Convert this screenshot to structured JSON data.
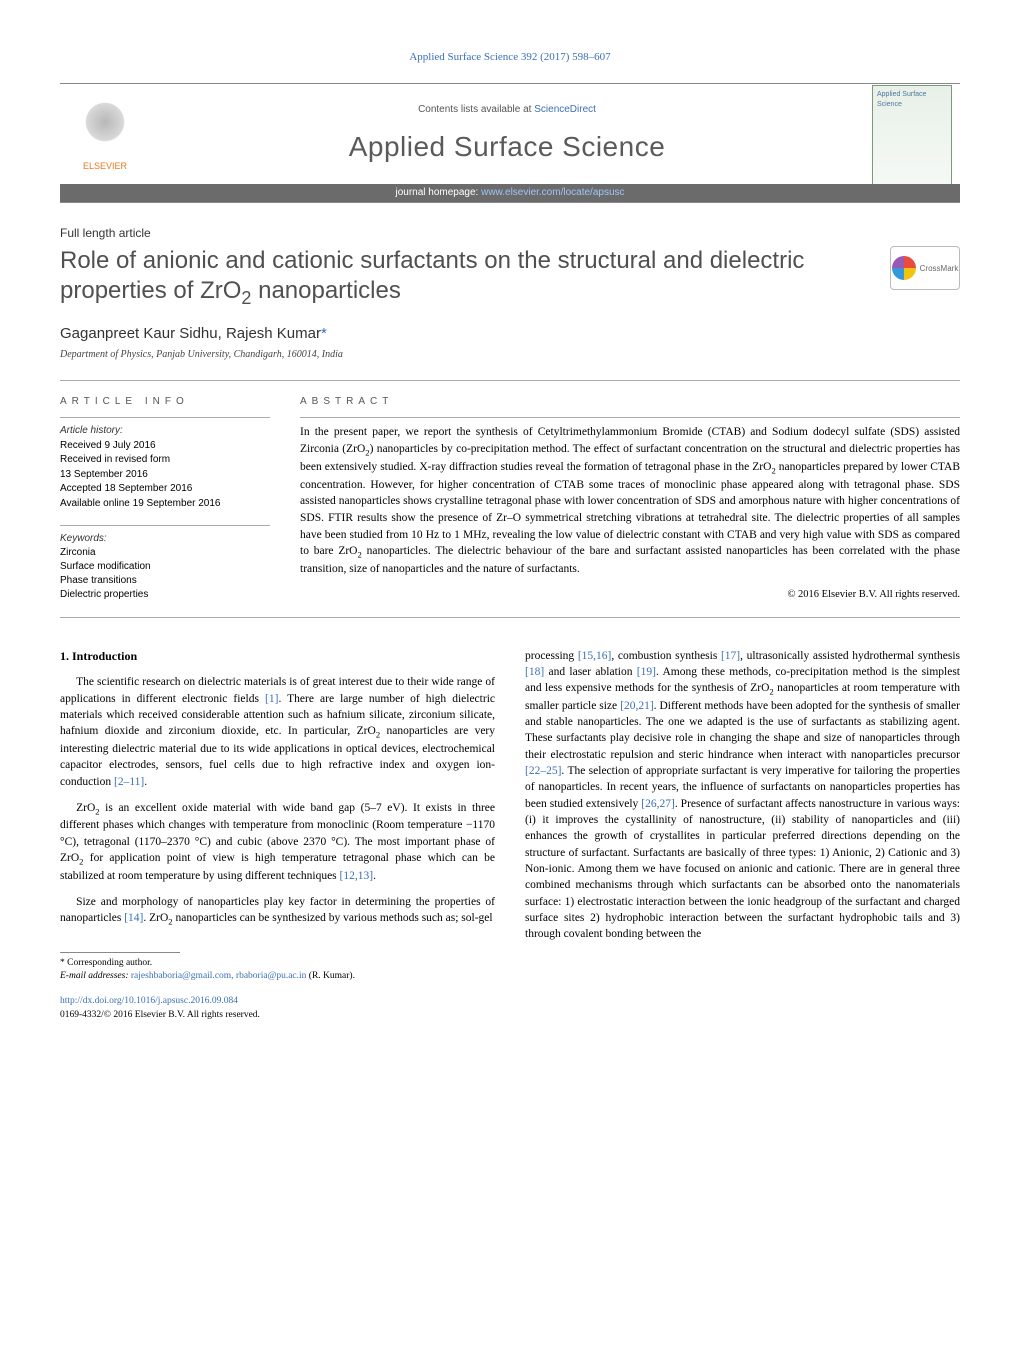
{
  "top_citation": "Applied Surface Science 392 (2017) 598–607",
  "masthead": {
    "contents_prefix": "Contents lists available at ",
    "contents_link": "ScienceDirect",
    "journal_name": "Applied Surface Science",
    "homepage_prefix": "journal homepage: ",
    "homepage_link": "www.elsevier.com/locate/apsusc",
    "publisher": "ELSEVIER",
    "cover_text": "Applied Surface Science"
  },
  "article_type": "Full length article",
  "title_html": "Role of anionic and cationic surfactants on the structural and dielectric properties of ZrO<sub>2</sub> nanoparticles",
  "crossmark_label": "CrossMark",
  "authors_html": "Gaganpreet Kaur Sidhu, Rajesh Kumar<span class=\"corr\">*</span>",
  "affiliation": "Department of Physics, Panjab University, Chandigarh, 160014, India",
  "article_info": {
    "label": "article info",
    "history_label": "Article history:",
    "history": [
      "Received 9 July 2016",
      "Received in revised form",
      "13 September 2016",
      "Accepted 18 September 2016",
      "Available online 19 September 2016"
    ],
    "keywords_label": "Keywords:",
    "keywords": [
      "Zirconia",
      "Surface modification",
      "Phase transitions",
      "Dielectric properties"
    ]
  },
  "abstract": {
    "label": "abstract",
    "text_html": "In the present paper, we report the synthesis of Cetyltrimethylammonium Bromide (CTAB) and Sodium dodecyl sulfate (SDS) assisted Zirconia (ZrO<sub>2</sub>) nanoparticles by co-precipitation method. The effect of surfactant concentration on the structural and dielectric properties has been extensively studied. X-ray diffraction studies reveal the formation of tetragonal phase in the ZrO<sub>2</sub> nanoparticles prepared by lower CTAB concentration. However, for higher concentration of CTAB some traces of monoclinic phase appeared along with tetragonal phase. SDS assisted nanoparticles shows crystalline tetragonal phase with lower concentration of SDS and amorphous nature with higher concentrations of SDS. FTIR results show the presence of Zr–O symmetrical stretching vibrations at tetrahedral site. The dielectric properties of all samples have been studied from 10 Hz to 1 MHz, revealing the low value of dielectric constant with CTAB and very high value with SDS as compared to bare ZrO<sub>2</sub> nanoparticles. The dielectric behaviour of the bare and surfactant assisted nanoparticles has been correlated with the phase transition, size of nanoparticles and the nature of surfactants.",
    "copyright": "© 2016 Elsevier B.V. All rights reserved."
  },
  "body": {
    "section_heading": "1. Introduction",
    "left_paras_html": [
      "The scientific research on dielectric materials is of great interest due to their wide range of applications in different electronic fields <span class=\"cite\">[1]</span>. There are large number of high dielectric materials which received considerable attention such as hafnium silicate, zirconium silicate, hafnium dioxide and zirconium dioxide, etc. In particular, ZrO<sub>2</sub> nanoparticles are very interesting dielectric material due to its wide applications in optical devices, electrochemical capacitor electrodes, sensors, fuel cells due to high refractive index and oxygen ion-conduction <span class=\"cite\">[2–11]</span>.",
      "ZrO<sub>2</sub> is an excellent oxide material with wide band gap (5–7 eV). It exists in three different phases which changes with temperature from monoclinic (Room temperature −1170 °C), tetragonal (1170–2370 °C) and cubic (above 2370 °C). The most important phase of ZrO<sub>2</sub> for application point of view is high temperature tetragonal phase which can be stabilized at room temperature by using different techniques <span class=\"cite\">[12,13]</span>.",
      "Size and morphology of nanoparticles play key factor in determining the properties of nanoparticles <span class=\"cite\">[14]</span>. ZrO<sub>2</sub> nanoparticles can be synthesized by various methods such as; sol-gel"
    ],
    "right_paras_html": [
      "processing <span class=\"cite\">[15,16]</span>, combustion synthesis <span class=\"cite\">[17]</span>, ultrasonically assisted hydrothermal synthesis <span class=\"cite\">[18]</span> and laser ablation <span class=\"cite\">[19]</span>. Among these methods, co-precipitation method is the simplest and less expensive methods for the synthesis of ZrO<sub>2</sub> nanoparticles at room temperature with smaller particle size <span class=\"cite\">[20,21]</span>. Different methods have been adopted for the synthesis of smaller and stable nanoparticles. The one we adapted is the use of surfactants as stabilizing agent. These surfactants play decisive role in changing the shape and size of nanoparticles through their electrostatic repulsion and steric hindrance when interact with nanoparticles precursor <span class=\"cite\">[22–25]</span>. The selection of appropriate surfactant is very imperative for tailoring the properties of nanoparticles. In recent years, the influence of surfactants on nanoparticles properties has been studied extensively <span class=\"cite\">[26,27]</span>. Presence of surfactant affects nanostructure in various ways: (i) it improves the cystallinity of nanostructure, (ii) stability of nanoparticles and (iii) enhances the growth of crystallites in particular preferred directions depending on the structure of surfactant. Surfactants are basically of three types: 1) Anionic, 2) Cationic and 3) Non-ionic. Among them we have focused on anionic and cationic. There are in general three combined mechanisms through which surfactants can be absorbed onto the nanomaterials surface: 1) electrostatic interaction between the ionic headgroup of the surfactant and charged surface sites 2) hydrophobic interaction between the surfactant hydrophobic tails and 3) through covalent bonding between the"
    ]
  },
  "footnote": {
    "corr_label": "* Corresponding author.",
    "email_label": "E-mail addresses: ",
    "emails": "rajeshbaboria@gmail.com, rbaboria@pu.ac.in",
    "email_suffix": " (R. Kumar)."
  },
  "doi": {
    "url": "http://dx.doi.org/10.1016/j.apsusc.2016.09.084",
    "issn_line": "0169-4332/© 2016 Elsevier B.V. All rights reserved."
  }
}
